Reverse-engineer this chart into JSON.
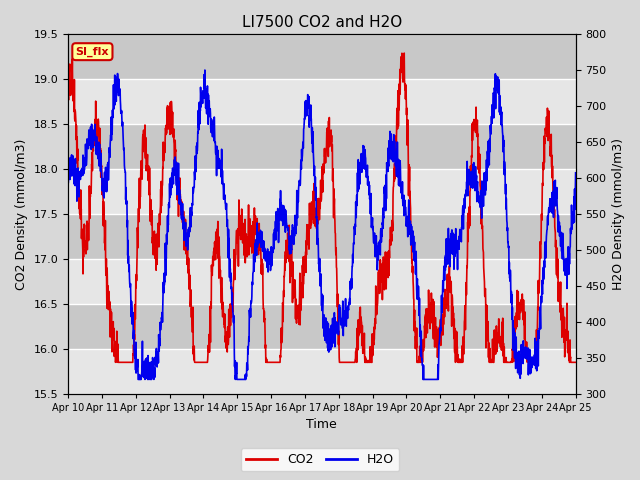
{
  "title": "LI7500 CO2 and H2O",
  "xlabel": "Time",
  "ylabel_left": "CO2 Density (mmol/m3)",
  "ylabel_right": "H2O Density (mmol/m3)",
  "ylim_left": [
    15.5,
    19.5
  ],
  "ylim_right": [
    300,
    800
  ],
  "yticks_left": [
    15.5,
    16.0,
    16.5,
    17.0,
    17.5,
    18.0,
    18.5,
    19.0,
    19.5
  ],
  "yticks_right": [
    300,
    350,
    400,
    450,
    500,
    550,
    600,
    650,
    700,
    750,
    800
  ],
  "xtick_labels": [
    "Apr 10",
    "Apr 11",
    "Apr 12",
    "Apr 13",
    "Apr 14",
    "Apr 15",
    "Apr 16",
    "Apr 17",
    "Apr 18",
    "Apr 19",
    "Apr 20",
    "Apr 21",
    "Apr 22",
    "Apr 23",
    "Apr 24",
    "Apr 25"
  ],
  "color_co2": "#dd0000",
  "color_h2o": "#0000ee",
  "background_color": "#d8d8d8",
  "plot_background": "#c8c8c8",
  "annotation_text": "SI_flx",
  "annotation_color": "#cc0000",
  "annotation_bg": "#ffff99",
  "legend_co2": "CO2",
  "legend_h2o": "H2O",
  "linewidth": 1.2
}
